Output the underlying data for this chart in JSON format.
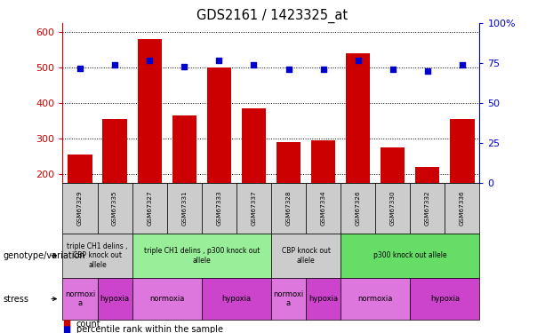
{
  "title": "GDS2161 / 1423325_at",
  "samples": [
    "GSM67329",
    "GSM67335",
    "GSM67327",
    "GSM67331",
    "GSM67333",
    "GSM67337",
    "GSM67328",
    "GSM67334",
    "GSM67326",
    "GSM67330",
    "GSM67332",
    "GSM67336"
  ],
  "counts": [
    255,
    355,
    580,
    365,
    500,
    385,
    290,
    295,
    540,
    275,
    220,
    355
  ],
  "percentiles": [
    72,
    74,
    77,
    73,
    77,
    74,
    71,
    71,
    77,
    71,
    70,
    74
  ],
  "ylim_left": [
    175,
    625
  ],
  "ylim_right": [
    0,
    100
  ],
  "yticks_left": [
    200,
    300,
    400,
    500,
    600
  ],
  "yticks_right": [
    0,
    25,
    50,
    75,
    100
  ],
  "bar_color": "#cc0000",
  "dot_color": "#0000cc",
  "genotype_groups": [
    {
      "label": "triple CH1 delins ,\nCBP knock out\nallele",
      "start": 0,
      "end": 2,
      "color": "#cccccc"
    },
    {
      "label": "triple CH1 delins , p300 knock out\nallele",
      "start": 2,
      "end": 6,
      "color": "#99ee99"
    },
    {
      "label": "CBP knock out\nallele",
      "start": 6,
      "end": 8,
      "color": "#cccccc"
    },
    {
      "label": "p300 knock out allele",
      "start": 8,
      "end": 12,
      "color": "#66dd66"
    }
  ],
  "stress_groups": [
    {
      "label": "normoxi\na",
      "start": 0,
      "end": 1,
      "color": "#dd77dd"
    },
    {
      "label": "hypoxia",
      "start": 1,
      "end": 2,
      "color": "#cc44cc"
    },
    {
      "label": "normoxia",
      "start": 2,
      "end": 4,
      "color": "#dd77dd"
    },
    {
      "label": "hypoxia",
      "start": 4,
      "end": 6,
      "color": "#cc44cc"
    },
    {
      "label": "normoxi\na",
      "start": 6,
      "end": 7,
      "color": "#dd77dd"
    },
    {
      "label": "hypoxia",
      "start": 7,
      "end": 8,
      "color": "#cc44cc"
    },
    {
      "label": "normoxia",
      "start": 8,
      "end": 10,
      "color": "#dd77dd"
    },
    {
      "label": "hypoxia",
      "start": 10,
      "end": 12,
      "color": "#cc44cc"
    }
  ],
  "tick_label_color_left": "#cc0000",
  "tick_label_color_right": "#0000cc",
  "legend_count_color": "#cc0000",
  "legend_pct_color": "#0000cc",
  "sample_box_color": "#cccccc"
}
